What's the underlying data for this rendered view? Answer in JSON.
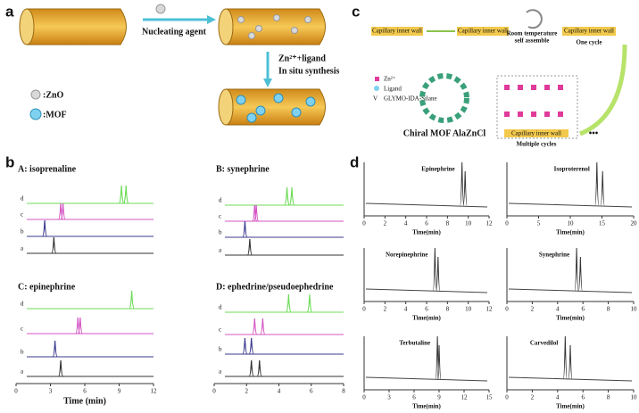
{
  "panel_a": {
    "label": "a",
    "arrow_label": "Nucleating agent",
    "step_label": [
      "Zn²⁺+ligand",
      "In situ synthesis"
    ],
    "legend": [
      ":ZnO",
      ":MOF"
    ]
  },
  "panel_c": {
    "label": "c",
    "wall_labels": [
      "Capillary inner wall",
      "Capillary inner wall",
      "Capillary inner wall",
      "Capillary inner wall"
    ],
    "room_temperature": [
      "Room temperature",
      "self assemble"
    ],
    "one_cycle": "One cycle",
    "legend": [
      "Zn²⁺",
      "Ligand",
      "GLYMO-IDA-Silane"
    ],
    "mof_name": "Chiral MOF AlaZnCl",
    "multiple_cycles": "Multiple cycles"
  },
  "panel_b": {
    "label": "b",
    "columns": [
      {
        "xlim": [
          0,
          12
        ],
        "xticks": [
          0,
          3,
          6,
          9,
          12
        ],
        "xlabel": "Time (min)",
        "plots": [
          {
            "title": "A: isoprenaline",
            "traces": [
              {
                "name": "d",
                "color": "#6fdc5a",
                "peaks": [
                  9.2,
                  9.6
                ]
              },
              {
                "name": "c",
                "color": "#d455c4",
                "peaks": [
                  3.9,
                  4.1
                ]
              },
              {
                "name": "b",
                "color": "#3b3b8f",
                "peaks": [
                  2.5
                ]
              },
              {
                "name": "a",
                "color": "#333333",
                "peaks": [
                  3.3
                ]
              }
            ]
          },
          {
            "title": "C: epinephrine",
            "traces": [
              {
                "name": "d",
                "color": "#6fdc5a",
                "peaks": [
                  10.1
                ]
              },
              {
                "name": "c",
                "color": "#d455c4",
                "peaks": [
                  5.4,
                  5.6
                ]
              },
              {
                "name": "b",
                "color": "#3b3b8f",
                "peaks": [
                  3.4
                ]
              },
              {
                "name": "a",
                "color": "#333333",
                "peaks": [
                  3.9
                ]
              }
            ]
          }
        ]
      },
      {
        "xlim": [
          0,
          8
        ],
        "xticks": [
          0,
          2,
          4,
          6,
          8
        ],
        "plots": [
          {
            "title": "B: synephrine",
            "traces": [
              {
                "name": "d",
                "color": "#6fdc5a",
                "peaks": [
                  4.5,
                  4.8
                ]
              },
              {
                "name": "c",
                "color": "#d455c4",
                "peaks": [
                  2.5,
                  2.6
                ]
              },
              {
                "name": "b",
                "color": "#3b3b8f",
                "peaks": [
                  1.9
                ]
              },
              {
                "name": "a",
                "color": "#333333",
                "peaks": [
                  2.2
                ]
              }
            ]
          },
          {
            "title": "D: ephedrine/pseudoephedrine",
            "traces": [
              {
                "name": "d",
                "color": "#6fdc5a",
                "peaks": [
                  4.6,
                  5.9
                ]
              },
              {
                "name": "c",
                "color": "#d455c4",
                "peaks": [
                  2.5,
                  3.0
                ]
              },
              {
                "name": "b",
                "color": "#3b3b8f",
                "peaks": [
                  1.9,
                  2.3
                ]
              },
              {
                "name": "a",
                "color": "#333333",
                "peaks": [
                  2.3,
                  2.8
                ]
              }
            ]
          }
        ]
      }
    ]
  },
  "panel_d": {
    "label": "d",
    "xlabel": "Time(min)",
    "plots": [
      {
        "title": "Epinephrine",
        "xlim": [
          0,
          12
        ],
        "xticks": [
          0,
          2,
          4,
          6,
          8,
          10,
          12
        ],
        "peaks": [
          9.4,
          9.7
        ]
      },
      {
        "title": "Isoproterenol",
        "xlim": [
          0,
          20
        ],
        "xticks": [
          0,
          5,
          10,
          15,
          20
        ],
        "peaks": [
          14.2,
          15.1
        ]
      },
      {
        "title": "Norepinephrine",
        "xlim": [
          0,
          12
        ],
        "xticks": [
          0,
          2,
          4,
          6,
          8,
          10,
          12
        ],
        "peaks": [
          6.8,
          7.1
        ]
      },
      {
        "title": "Synephrine",
        "xlim": [
          0,
          10
        ],
        "xticks": [
          0,
          2,
          4,
          6,
          8,
          10
        ],
        "peaks": [
          5.5,
          5.8
        ]
      },
      {
        "title": "Terbutaline",
        "xlim": [
          0,
          15
        ],
        "xticks": [
          0,
          3,
          6,
          9,
          12,
          15
        ],
        "peaks": [
          8.8,
          9.0
        ]
      },
      {
        "title": "Carvedilol",
        "xlim": [
          0,
          10
        ],
        "xticks": [
          0,
          2,
          4,
          6,
          8,
          10
        ],
        "peaks": [
          4.6,
          5.0
        ]
      }
    ]
  }
}
